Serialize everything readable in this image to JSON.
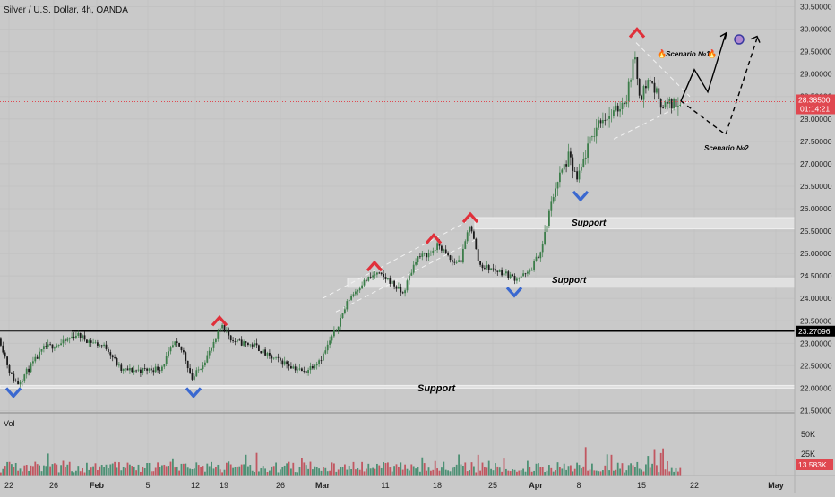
{
  "header": {
    "title": "Silver / U.S. Dollar, 4h, OANDA"
  },
  "volume_panel": {
    "label": "Vol",
    "tick_labels": [
      "50K",
      "25K"
    ],
    "current_value": "13.583K"
  },
  "price_badges": {
    "current_price": "28.38500",
    "countdown": "01:14:21",
    "level_price": "23.27096"
  },
  "annotations": {
    "support_labels": [
      "Support",
      "Support",
      "Support"
    ],
    "scenario_1": "Scenario №1",
    "scenario_2": "Scenario №2"
  },
  "colors": {
    "background": "#c9c9c9",
    "up_candle": "#3c7d4a",
    "down_candle": "#1a1a1a",
    "top_marker": "#e0303a",
    "bottom_marker": "#3a68d0",
    "price_badge": "#e04850",
    "level_line": "#000000"
  },
  "chart_data": {
    "type": "candlestick",
    "title": "Silver / U.S. Dollar, 4h, OANDA",
    "y_axis": {
      "ticks": [
        "30.50000",
        "30.00000",
        "29.50000",
        "29.00000",
        "28.50000",
        "28.00000",
        "27.50000",
        "27.00000",
        "26.50000",
        "26.00000",
        "25.50000",
        "25.00000",
        "24.50000",
        "24.00000",
        "23.50000",
        "23.00000",
        "22.50000",
        "22.00000",
        "21.50000"
      ],
      "range": [
        21.45,
        30.65
      ]
    },
    "x_axis": {
      "ticks": [
        "22",
        "26",
        "Feb",
        "5",
        "12",
        "19",
        "26",
        "Mar",
        "11",
        "18",
        "25",
        "Apr",
        "8",
        "15",
        "22",
        "May"
      ]
    },
    "price_path": [
      {
        "x": 0,
        "y": 23.1
      },
      {
        "x": 12,
        "y": 22.3
      },
      {
        "x": 20,
        "y": 22.1
      },
      {
        "x": 35,
        "y": 22.5
      },
      {
        "x": 50,
        "y": 22.9
      },
      {
        "x": 70,
        "y": 23.0
      },
      {
        "x": 85,
        "y": 23.2
      },
      {
        "x": 100,
        "y": 23.05
      },
      {
        "x": 120,
        "y": 22.9
      },
      {
        "x": 135,
        "y": 22.4
      },
      {
        "x": 160,
        "y": 22.4
      },
      {
        "x": 180,
        "y": 22.45
      },
      {
        "x": 195,
        "y": 23.0
      },
      {
        "x": 205,
        "y": 22.8
      },
      {
        "x": 215,
        "y": 22.2
      },
      {
        "x": 225,
        "y": 22.5
      },
      {
        "x": 240,
        "y": 23.0
      },
      {
        "x": 248,
        "y": 23.45
      },
      {
        "x": 260,
        "y": 23.05
      },
      {
        "x": 285,
        "y": 22.95
      },
      {
        "x": 300,
        "y": 22.7
      },
      {
        "x": 320,
        "y": 22.55
      },
      {
        "x": 340,
        "y": 22.35
      },
      {
        "x": 360,
        "y": 22.7
      },
      {
        "x": 375,
        "y": 23.3
      },
      {
        "x": 390,
        "y": 24.0
      },
      {
        "x": 405,
        "y": 24.35
      },
      {
        "x": 420,
        "y": 24.55
      },
      {
        "x": 435,
        "y": 24.4
      },
      {
        "x": 450,
        "y": 24.1
      },
      {
        "x": 465,
        "y": 24.9
      },
      {
        "x": 480,
        "y": 25.0
      },
      {
        "x": 490,
        "y": 25.2
      },
      {
        "x": 505,
        "y": 24.8
      },
      {
        "x": 515,
        "y": 24.85
      },
      {
        "x": 525,
        "y": 25.7
      },
      {
        "x": 535,
        "y": 24.75
      },
      {
        "x": 550,
        "y": 24.65
      },
      {
        "x": 565,
        "y": 24.55
      },
      {
        "x": 575,
        "y": 24.45
      },
      {
        "x": 590,
        "y": 24.55
      },
      {
        "x": 605,
        "y": 25.1
      },
      {
        "x": 620,
        "y": 26.5
      },
      {
        "x": 635,
        "y": 27.15
      },
      {
        "x": 645,
        "y": 26.6
      },
      {
        "x": 655,
        "y": 27.3
      },
      {
        "x": 670,
        "y": 28.0
      },
      {
        "x": 685,
        "y": 28.1
      },
      {
        "x": 700,
        "y": 28.5
      },
      {
        "x": 708,
        "y": 29.4
      },
      {
        "x": 715,
        "y": 28.5
      },
      {
        "x": 725,
        "y": 28.9
      },
      {
        "x": 740,
        "y": 28.3
      },
      {
        "x": 760,
        "y": 28.38
      }
    ],
    "levels": [
      {
        "name": "resistance",
        "y": 23.27096
      },
      {
        "name": "support",
        "y": [
          25.55,
          25.8
        ]
      },
      {
        "name": "support",
        "y": [
          24.25,
          24.45
        ]
      },
      {
        "name": "support",
        "y": [
          22.0,
          22.06
        ]
      }
    ],
    "scenario_1_path": [
      {
        "x": 760,
        "y": 28.4
      },
      {
        "x": 775,
        "y": 29.1
      },
      {
        "x": 790,
        "y": 28.6
      },
      {
        "x": 810,
        "y": 29.9
      }
    ],
    "scenario_2_path": [
      {
        "x": 760,
        "y": 28.4
      },
      {
        "x": 810,
        "y": 27.65
      },
      {
        "x": 845,
        "y": 29.8
      }
    ],
    "channel_lines": [
      {
        "from": {
          "x": 360,
          "y": 24.0
        },
        "to": {
          "x": 520,
          "y": 25.7
        }
      },
      {
        "from": {
          "x": 375,
          "y": 23.7
        },
        "to": {
          "x": 530,
          "y": 25.3
        }
      },
      {
        "from": {
          "x": 710,
          "y": 29.7
        },
        "to": {
          "x": 770,
          "y": 28.5
        }
      },
      {
        "from": {
          "x": 685,
          "y": 27.55
        },
        "to": {
          "x": 770,
          "y": 28.4
        }
      }
    ],
    "top_markers": [
      {
        "x": 245,
        "y": 23.5
      },
      {
        "x": 418,
        "y": 24.72
      },
      {
        "x": 484,
        "y": 25.33
      },
      {
        "x": 525,
        "y": 25.8
      },
      {
        "x": 711,
        "y": 29.92
      }
    ],
    "bottom_markers": [
      {
        "x": 15,
        "y": 21.92
      },
      {
        "x": 216,
        "y": 21.92
      },
      {
        "x": 574,
        "y": 24.16
      },
      {
        "x": 648,
        "y": 26.3
      }
    ],
    "current_price": 28.385,
    "volume": {
      "max": 70000,
      "ticks": [
        50000,
        25000
      ],
      "current": 13583
    }
  }
}
